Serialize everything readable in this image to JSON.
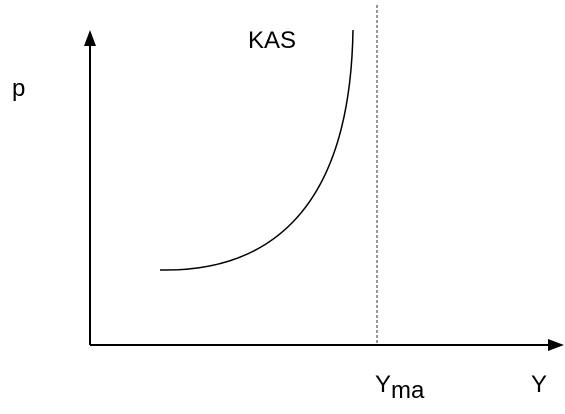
{
  "axes": {
    "y_label": "p",
    "x_label": "Y"
  },
  "curve": {
    "label": "KAS"
  },
  "limit_line": {
    "label": "Y",
    "subscript": "ma"
  }
}
